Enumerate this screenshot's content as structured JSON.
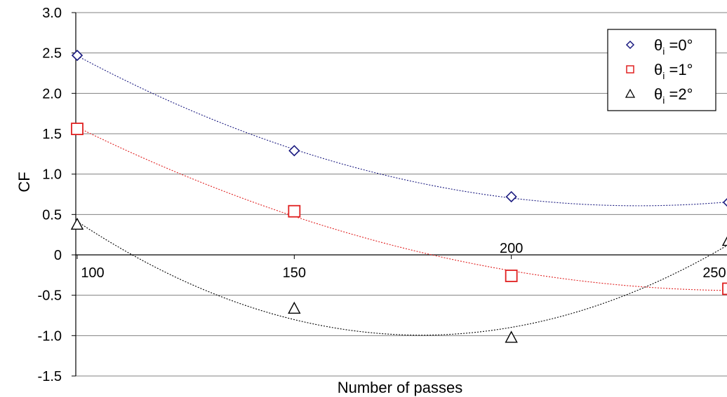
{
  "chart_data": {
    "type": "scatter",
    "title": "",
    "xlabel": "Number of passes",
    "ylabel": "CF",
    "x": [
      100,
      150,
      200,
      250
    ],
    "x_tick_labels": [
      "100",
      "150",
      "200",
      "250"
    ],
    "y_tick_labels": [
      "3.0",
      "2.5",
      "2.0",
      "1.5",
      "1.0",
      "0.5",
      "0",
      "-0.5",
      "-1.0",
      "-1.5"
    ],
    "y_ticks": [
      3.0,
      2.5,
      2.0,
      1.5,
      1.0,
      0.5,
      0,
      -0.5,
      -1.0,
      -1.5
    ],
    "xlim": [
      100,
      250
    ],
    "ylim": [
      -1.5,
      3.0
    ],
    "grid": true,
    "legend_position": "top-right",
    "trendlines": "dotted polynomial fit per series",
    "series": [
      {
        "name": "θi =0°",
        "legend_main": "θ",
        "legend_sub": "i",
        "legend_rest": " =0°",
        "marker": "diamond",
        "color": "#1a1a80",
        "values": [
          2.47,
          1.29,
          0.72,
          0.65
        ]
      },
      {
        "name": "θi =1°",
        "legend_main": "θ",
        "legend_sub": "i",
        "legend_rest": " =1°",
        "marker": "square",
        "color": "#e02020",
        "values": [
          1.56,
          0.54,
          -0.26,
          -0.42
        ]
      },
      {
        "name": "θi =2°",
        "legend_main": "θ",
        "legend_sub": "i",
        "legend_rest": " =2°",
        "marker": "triangle",
        "color": "#000000",
        "values": [
          0.37,
          -0.67,
          -1.03,
          0.17
        ]
      }
    ]
  }
}
